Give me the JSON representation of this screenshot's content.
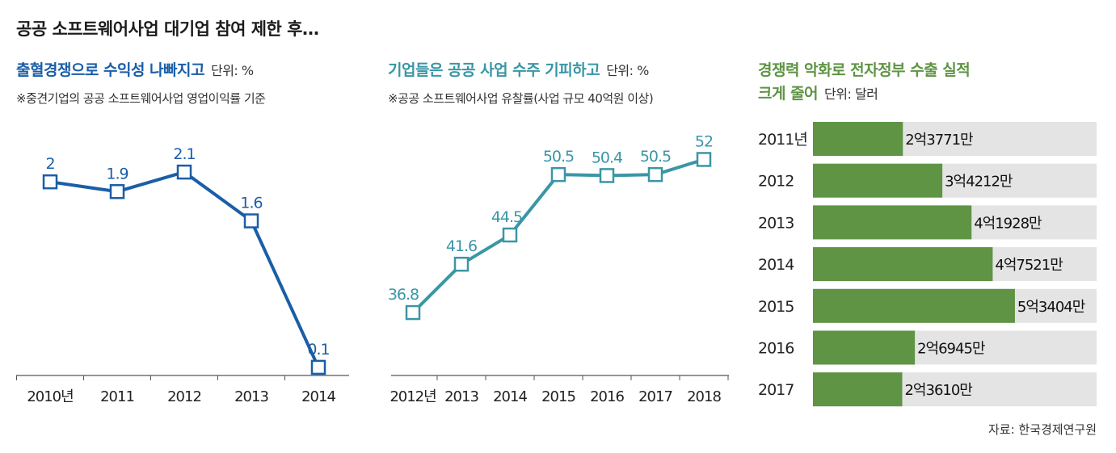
{
  "title": "공공 소프트웨어사업 대기업 참여 제한 후…",
  "source": "자료: 한국경제연구원",
  "chart_data": [
    {
      "type": "line",
      "title": "출혈경쟁으로 수익성 나빠지고",
      "unit": "단위: %",
      "note": "※중견기업의 공공 소프트웨어사업 영업이익률 기준",
      "color": "#1a5ea8",
      "categories": [
        "2010년",
        "2011",
        "2012",
        "2013",
        "2014"
      ],
      "values": [
        2,
        1.9,
        2.1,
        1.6,
        0.1
      ],
      "labels": [
        "2",
        "1.9",
        "2.1",
        "1.6",
        "0.1"
      ],
      "ylim": [
        0,
        2.2
      ]
    },
    {
      "type": "line",
      "title": "기업들은 공공 사업 수주 기피하고",
      "unit": "단위: %",
      "note": "※공공 소프트웨어사업 유찰률(사업 규모 40억원 이상)",
      "color": "#3a96a6",
      "categories": [
        "2012년",
        "2013",
        "2014",
        "2015",
        "2016",
        "2017",
        "2018"
      ],
      "values": [
        36.8,
        41.6,
        44.5,
        50.5,
        50.4,
        50.5,
        52
      ],
      "labels": [
        "36.8",
        "41.6",
        "44.5",
        "50.5",
        "50.4",
        "50.5",
        "52"
      ],
      "ylim": [
        34,
        53
      ]
    },
    {
      "type": "bar",
      "title_line1": "경쟁력 악화로 전자정부 수출 실적",
      "title_line2": "크게 줄어",
      "unit": "단위: 달러",
      "color": "#5e9444",
      "track_color": "#e4e4e4",
      "categories": [
        "2011년",
        "2012",
        "2013",
        "2014",
        "2015",
        "2016",
        "2017"
      ],
      "values": [
        237710000,
        342120000,
        419280000,
        475210000,
        534040000,
        269450000,
        236100000
      ],
      "labels": [
        "2억3771만",
        "3억4212만",
        "4억1928만",
        "4억7521만",
        "5억3404만",
        "2억6945만",
        "2억3610만"
      ],
      "xlim": [
        0,
        750000000
      ]
    }
  ]
}
